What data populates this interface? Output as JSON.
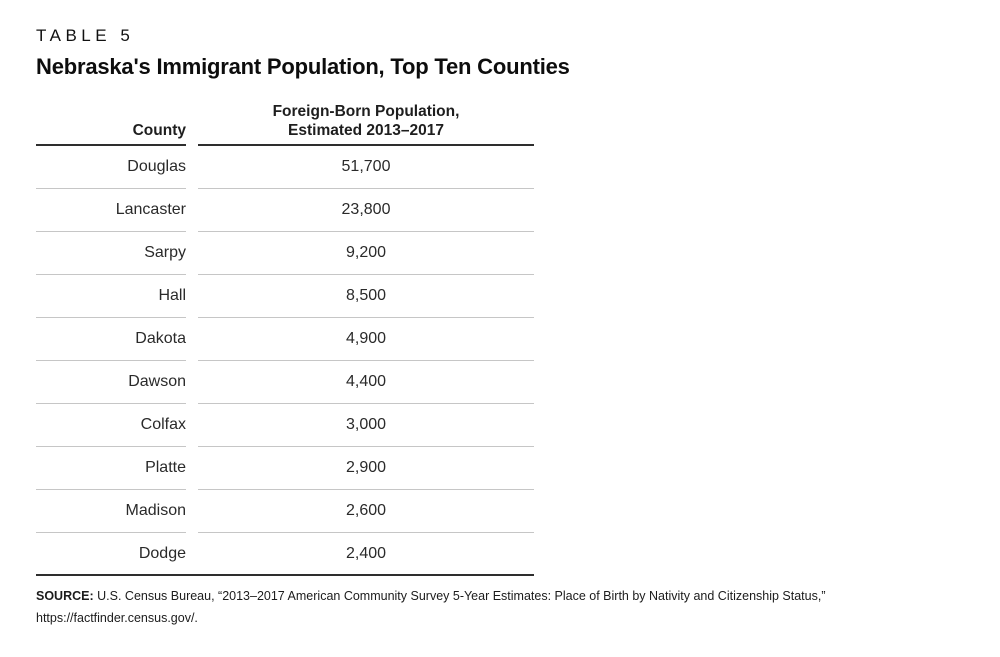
{
  "page": {
    "table_label": "TABLE 5",
    "title": "Nebraska's Immigrant Population, Top Ten Counties"
  },
  "table": {
    "columns": {
      "county": "County",
      "population_line1": "Foreign-Born Population,",
      "population_line2": "Estimated 2013–2017"
    },
    "rows": [
      {
        "county": "Douglas",
        "population": "51,700"
      },
      {
        "county": "Lancaster",
        "population": "23,800"
      },
      {
        "county": "Sarpy",
        "population": "9,200"
      },
      {
        "county": "Hall",
        "population": "8,500"
      },
      {
        "county": "Dakota",
        "population": "4,900"
      },
      {
        "county": "Dawson",
        "population": "4,400"
      },
      {
        "county": "Colfax",
        "population": "3,000"
      },
      {
        "county": "Platte",
        "population": "2,900"
      },
      {
        "county": "Madison",
        "population": "2,600"
      },
      {
        "county": "Dodge",
        "population": "2,400"
      }
    ]
  },
  "source": {
    "label": "SOURCE:",
    "text": "U.S. Census Bureau, “2013–2017 American Community Survey 5-Year Estimates: Place of Birth by Nativity and Citizenship Status,” https://factfinder.census.gov/."
  },
  "colors": {
    "background": "#ffffff",
    "text": "#1e1e1e",
    "rule_dark": "#2e2e2e",
    "rule_light": "#c6c6c6"
  }
}
